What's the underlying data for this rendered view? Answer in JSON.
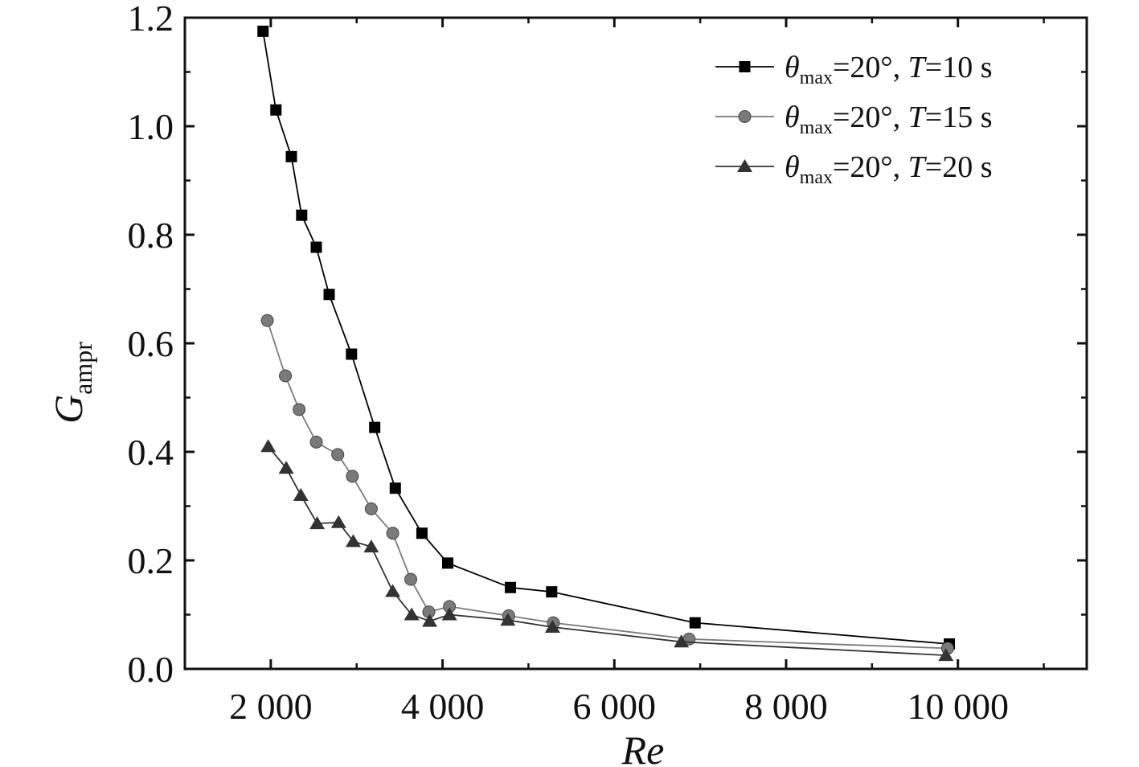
{
  "chart_data": {
    "type": "line",
    "title": "",
    "xlabel": "Re",
    "ylabel": "G",
    "ylabel_sub": "ampr",
    "xlim": [
      1000,
      11500
    ],
    "ylim": [
      0,
      1.2
    ],
    "xticks": [
      2000,
      4000,
      6000,
      8000,
      10000
    ],
    "xtick_labels": [
      "2 000",
      "4 000",
      "6 000",
      "8 000",
      "10 000"
    ],
    "yticks": [
      0,
      0.2,
      0.4,
      0.6,
      0.8,
      1.0,
      1.2
    ],
    "ytick_labels": [
      "0.0",
      "0.2",
      "0.4",
      "0.6",
      "0.8",
      "1.0",
      "1.2"
    ],
    "legend_position": "top-right",
    "series": [
      {
        "name": "θmax=20°, T=10 s",
        "legend": {
          "theta": "θ",
          "sub": "max",
          "mid": "=20°, ",
          "T": "T",
          "rest": "=10 s"
        },
        "marker": "square",
        "color": "#000000",
        "x": [
          1910,
          2060,
          2240,
          2360,
          2530,
          2680,
          2940,
          3210,
          3450,
          3760,
          4060,
          4790,
          5270,
          6940,
          9900
        ],
        "y": [
          1.175,
          1.03,
          0.944,
          0.836,
          0.777,
          0.69,
          0.58,
          0.445,
          0.333,
          0.25,
          0.195,
          0.15,
          0.142,
          0.085,
          0.046
        ]
      },
      {
        "name": "θmax=20°, T=15 s",
        "legend": {
          "theta": "θ",
          "sub": "max",
          "mid": "=20°, ",
          "T": "T",
          "rest": "=15 s"
        },
        "marker": "circle",
        "color": "#7a7a7a",
        "x": [
          1960,
          2170,
          2330,
          2530,
          2780,
          2950,
          3170,
          3420,
          3630,
          3840,
          4080,
          4770,
          5290,
          6870,
          9880
        ],
        "y": [
          0.642,
          0.54,
          0.478,
          0.418,
          0.395,
          0.355,
          0.295,
          0.25,
          0.165,
          0.105,
          0.115,
          0.098,
          0.085,
          0.055,
          0.038
        ]
      },
      {
        "name": "θmax=20°, T=20 s",
        "legend": {
          "theta": "θ",
          "sub": "max",
          "mid": "=20°, ",
          "T": "T",
          "rest": "=20 s"
        },
        "marker": "triangle",
        "color": "#333333",
        "x": [
          1970,
          2180,
          2350,
          2540,
          2790,
          2960,
          3170,
          3420,
          3640,
          3850,
          4080,
          4760,
          5280,
          6780,
          9860
        ],
        "y": [
          0.41,
          0.37,
          0.32,
          0.268,
          0.27,
          0.235,
          0.225,
          0.143,
          0.1,
          0.088,
          0.1,
          0.09,
          0.077,
          0.05,
          0.025
        ]
      }
    ]
  }
}
